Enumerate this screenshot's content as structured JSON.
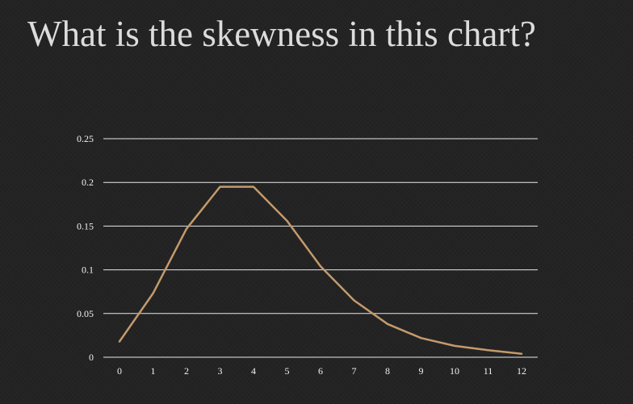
{
  "slide": {
    "title": "What is the skewness in this chart?"
  },
  "colors": {
    "background": "#232323",
    "gridline": "#e8e8e8",
    "series": "#c49a6c",
    "text": "#dcdcdc"
  },
  "chart_data": {
    "type": "line",
    "title": "",
    "xlabel": "",
    "ylabel": "",
    "categories": [
      "0",
      "1",
      "2",
      "3",
      "4",
      "5",
      "6",
      "7",
      "8",
      "9",
      "10",
      "11",
      "12"
    ],
    "series": [
      {
        "values": [
          0.018,
          0.073,
          0.147,
          0.195,
          0.195,
          0.156,
          0.104,
          0.065,
          0.038,
          0.022,
          0.013,
          0.008,
          0.004
        ]
      }
    ],
    "ylim": [
      0,
      0.25
    ],
    "yticks": [
      "0",
      "0.05",
      "0.1",
      "0.15",
      "0.2",
      "0.25"
    ],
    "ytick_values": [
      0,
      0.05,
      0.1,
      0.15,
      0.2,
      0.25
    ],
    "grid": true,
    "legend": "none"
  }
}
